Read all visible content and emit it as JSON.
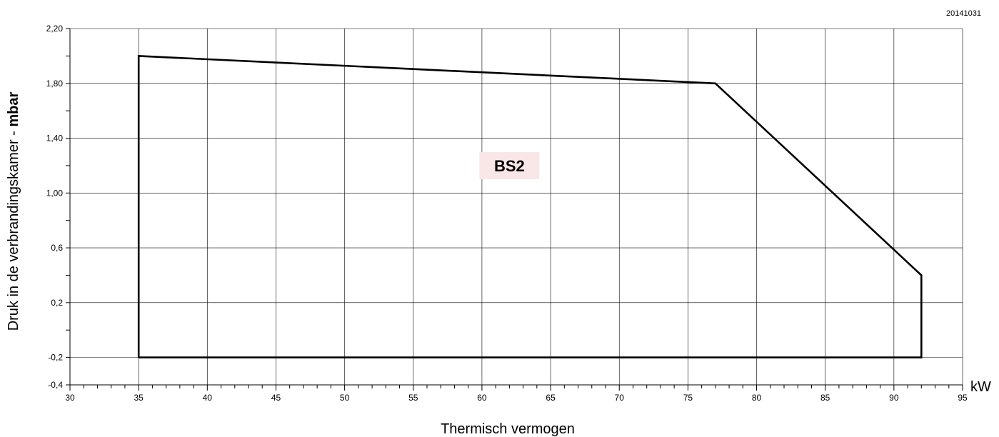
{
  "document_code": "20141031",
  "chart_data": {
    "type": "line",
    "xlabel": "Thermisch vermogen",
    "x_unit": "kW",
    "ylabel": "Druk in de verbrandingskamer - ",
    "ylabel_unit": "mbar",
    "xlim": [
      30,
      95
    ],
    "ylim": [
      -0.4,
      2.2
    ],
    "x_ticks": [
      30,
      35,
      40,
      45,
      50,
      55,
      60,
      65,
      70,
      75,
      80,
      85,
      90,
      95
    ],
    "x_tick_labels": [
      "30",
      "35",
      "40",
      "45",
      "50",
      "55",
      "60",
      "65",
      "70",
      "75",
      "80",
      "85",
      "90",
      "95"
    ],
    "y_ticks": [
      -0.4,
      -0.2,
      0.2,
      0.6,
      1.0,
      1.4,
      1.8,
      2.2
    ],
    "y_tick_labels": [
      "-0,4",
      "-0,2",
      "0,2",
      "0,6",
      "1,00",
      "1,40",
      "1,80",
      "2,20"
    ],
    "x_minor_step": 1,
    "y_minor_step": 0.2,
    "grid": true,
    "series": [
      {
        "points": [
          [
            35,
            -0.2
          ],
          [
            35,
            2.0
          ],
          [
            77,
            1.8
          ],
          [
            92,
            0.4
          ],
          [
            92,
            -0.2
          ],
          [
            35,
            -0.2
          ]
        ]
      }
    ],
    "annotations": [
      {
        "text": "BS2",
        "x": 62,
        "y": 1.2,
        "background": "#f9e7e7"
      }
    ]
  }
}
